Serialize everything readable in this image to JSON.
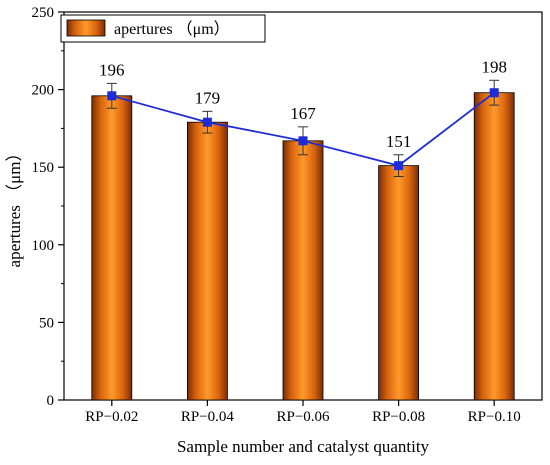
{
  "chart_data": {
    "type": "bar",
    "title": "",
    "xlabel": "Sample number and catalyst quantity",
    "ylabel": "apertures （μm）",
    "categories": [
      "RP−0.02",
      "RP−0.04",
      "RP−0.06",
      "RP−0.08",
      "RP−0.10"
    ],
    "series": [
      {
        "name": "apertures （μm）",
        "kind": "bar",
        "values": [
          196,
          179,
          167,
          151,
          198
        ],
        "errors": [
          8,
          7,
          9,
          7,
          8
        ],
        "data_labels": [
          "196",
          "179",
          "167",
          "151",
          "198"
        ],
        "color": "#f28a1c"
      },
      {
        "kind": "line",
        "values": [
          196,
          179,
          167,
          151,
          198
        ],
        "color": "#1f2bd6",
        "marker": "square"
      }
    ],
    "ylim": [
      0,
      250
    ],
    "yticks": [
      0,
      50,
      100,
      150,
      200,
      250
    ],
    "legend_position": "top-left",
    "grid": false
  }
}
